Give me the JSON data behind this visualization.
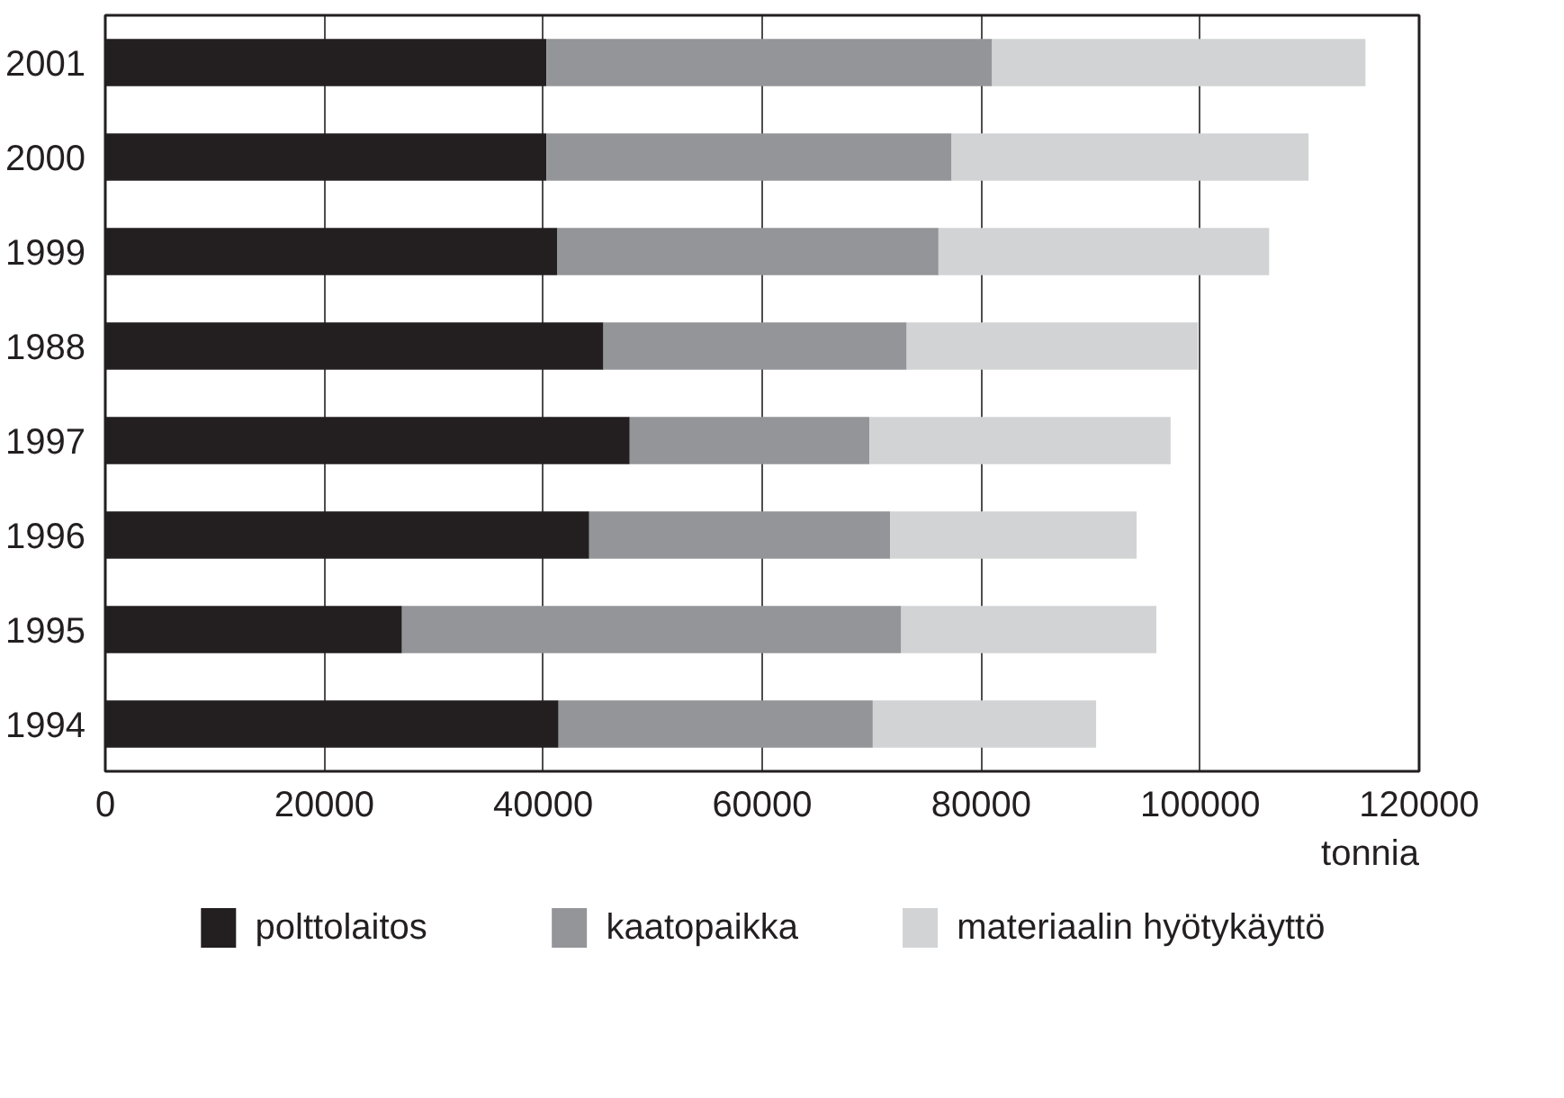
{
  "chart_data": {
    "type": "bar",
    "orientation": "horizontal",
    "stacked": true,
    "xlabel": "tonnia",
    "categories": [
      "2001",
      "2000",
      "1999",
      "1988",
      "1997",
      "1996",
      "1995",
      "1994"
    ],
    "series": [
      {
        "name": "polttolaitos",
        "color": "#231f20",
        "values": [
          40300,
          40300,
          41300,
          45500,
          47900,
          44200,
          27100,
          41400
        ]
      },
      {
        "name": "kaatopaikka",
        "color": "#939598",
        "values": [
          40700,
          37000,
          34800,
          27700,
          21900,
          27500,
          45600,
          28700
        ]
      },
      {
        "name": "materiaalin hyötykäyttö",
        "color": "#d1d3d4",
        "values": [
          34100,
          32600,
          30200,
          26600,
          27500,
          22500,
          23300,
          20400
        ]
      }
    ],
    "xlim": [
      0,
      120000
    ],
    "xticks": [
      0,
      20000,
      40000,
      60000,
      80000,
      100000,
      120000
    ],
    "grid": "x",
    "legend": "bottom"
  }
}
